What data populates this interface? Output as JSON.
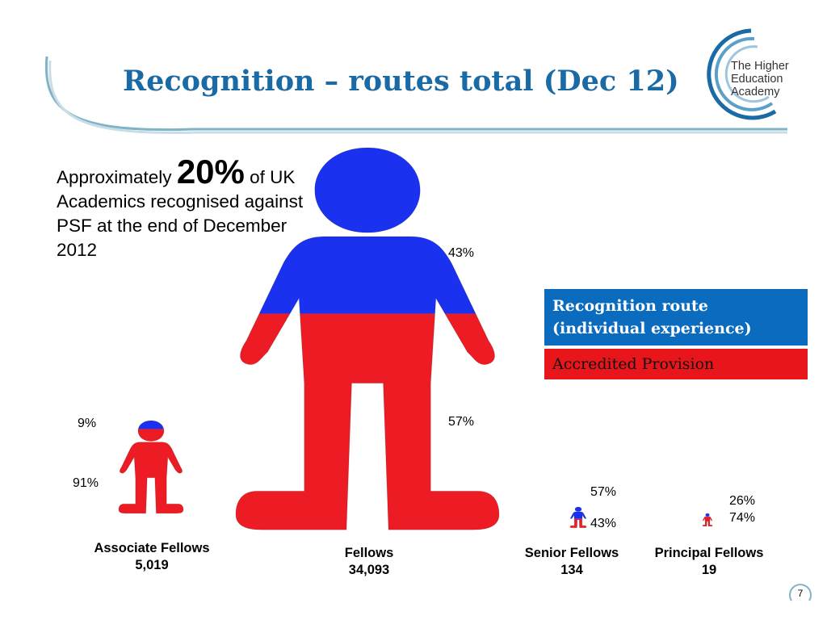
{
  "slide": {
    "title": "Recognition – routes total (Dec 12)",
    "intro": {
      "pre": "Approximately ",
      "big": "20%",
      "post": " of UK Academics recognised against PSF at the end of December 2012"
    },
    "page_number": "7",
    "logo": {
      "line1": "The Higher",
      "line2": "Education",
      "line3": "Academy"
    }
  },
  "legend": {
    "blue_label": "Recognition route (individual experience)",
    "red_label": "Accredited Provision",
    "blue_color": "#1a31f0",
    "red_color": "#ec1b24"
  },
  "chart_data": {
    "type": "pictograph",
    "title": "Recognition – routes total (Dec 12)",
    "series_names": [
      "Recognition route (individual experience)",
      "Accredited Provision"
    ],
    "categories": [
      {
        "name": "Associate Fellows",
        "count": "5,019",
        "recognition_route_pct": 9,
        "accredited_provision_pct": 91,
        "label_top": "9%",
        "label_bottom": "91%"
      },
      {
        "name": "Fellows",
        "count": "34,093",
        "recognition_route_pct": 43,
        "accredited_provision_pct": 57,
        "label_top": "43%",
        "label_bottom": "57%"
      },
      {
        "name": "Senior Fellows",
        "count": "134",
        "recognition_route_pct": 57,
        "accredited_provision_pct": 43,
        "label_top": "57%",
        "label_bottom": "43%"
      },
      {
        "name": "Principal Fellows",
        "count": "19",
        "recognition_route_pct": 26,
        "accredited_provision_pct": 74,
        "label_top": "26%",
        "label_bottom": "74%"
      }
    ]
  }
}
